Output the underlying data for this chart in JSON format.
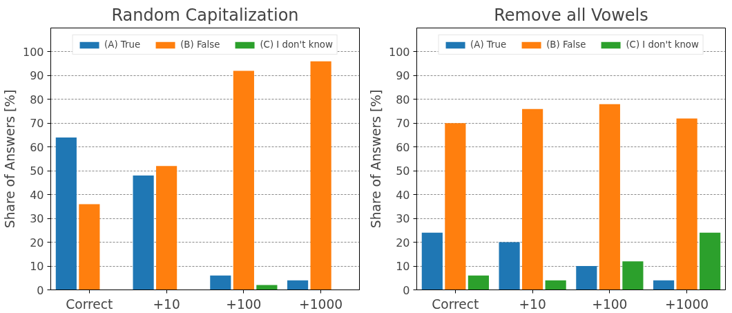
{
  "chart_data": [
    {
      "type": "bar",
      "title": "Random Capitalization",
      "ylabel": "Share of Answers [%]",
      "categories": [
        "Correct",
        "+10",
        "+100",
        "+1000"
      ],
      "series": [
        {
          "name": "(A) True",
          "color": "#1f77b4",
          "values": [
            64,
            48,
            6,
            4
          ]
        },
        {
          "name": "(B) False",
          "color": "#ff7f0e",
          "values": [
            36,
            52,
            92,
            96
          ]
        },
        {
          "name": "(C) I don't know",
          "color": "#2ca02c",
          "values": [
            0,
            0,
            2,
            0
          ]
        }
      ],
      "ylim": [
        0,
        110
      ],
      "yticks": [
        0,
        10,
        20,
        30,
        40,
        50,
        60,
        70,
        80,
        90,
        100
      ],
      "grid": "y",
      "legend": "top"
    },
    {
      "type": "bar",
      "title": "Remove all Vowels",
      "ylabel": "Share of Answers [%]",
      "categories": [
        "Correct",
        "+10",
        "+100",
        "+1000"
      ],
      "series": [
        {
          "name": "(A) True",
          "color": "#1f77b4",
          "values": [
            24,
            20,
            10,
            4
          ]
        },
        {
          "name": "(B) False",
          "color": "#ff7f0e",
          "values": [
            70,
            76,
            78,
            72
          ]
        },
        {
          "name": "(C) I don't know",
          "color": "#2ca02c",
          "values": [
            6,
            4,
            12,
            24
          ]
        }
      ],
      "ylim": [
        0,
        110
      ],
      "yticks": [
        0,
        10,
        20,
        30,
        40,
        50,
        60,
        70,
        80,
        90,
        100
      ],
      "grid": "y",
      "legend": "top"
    }
  ]
}
